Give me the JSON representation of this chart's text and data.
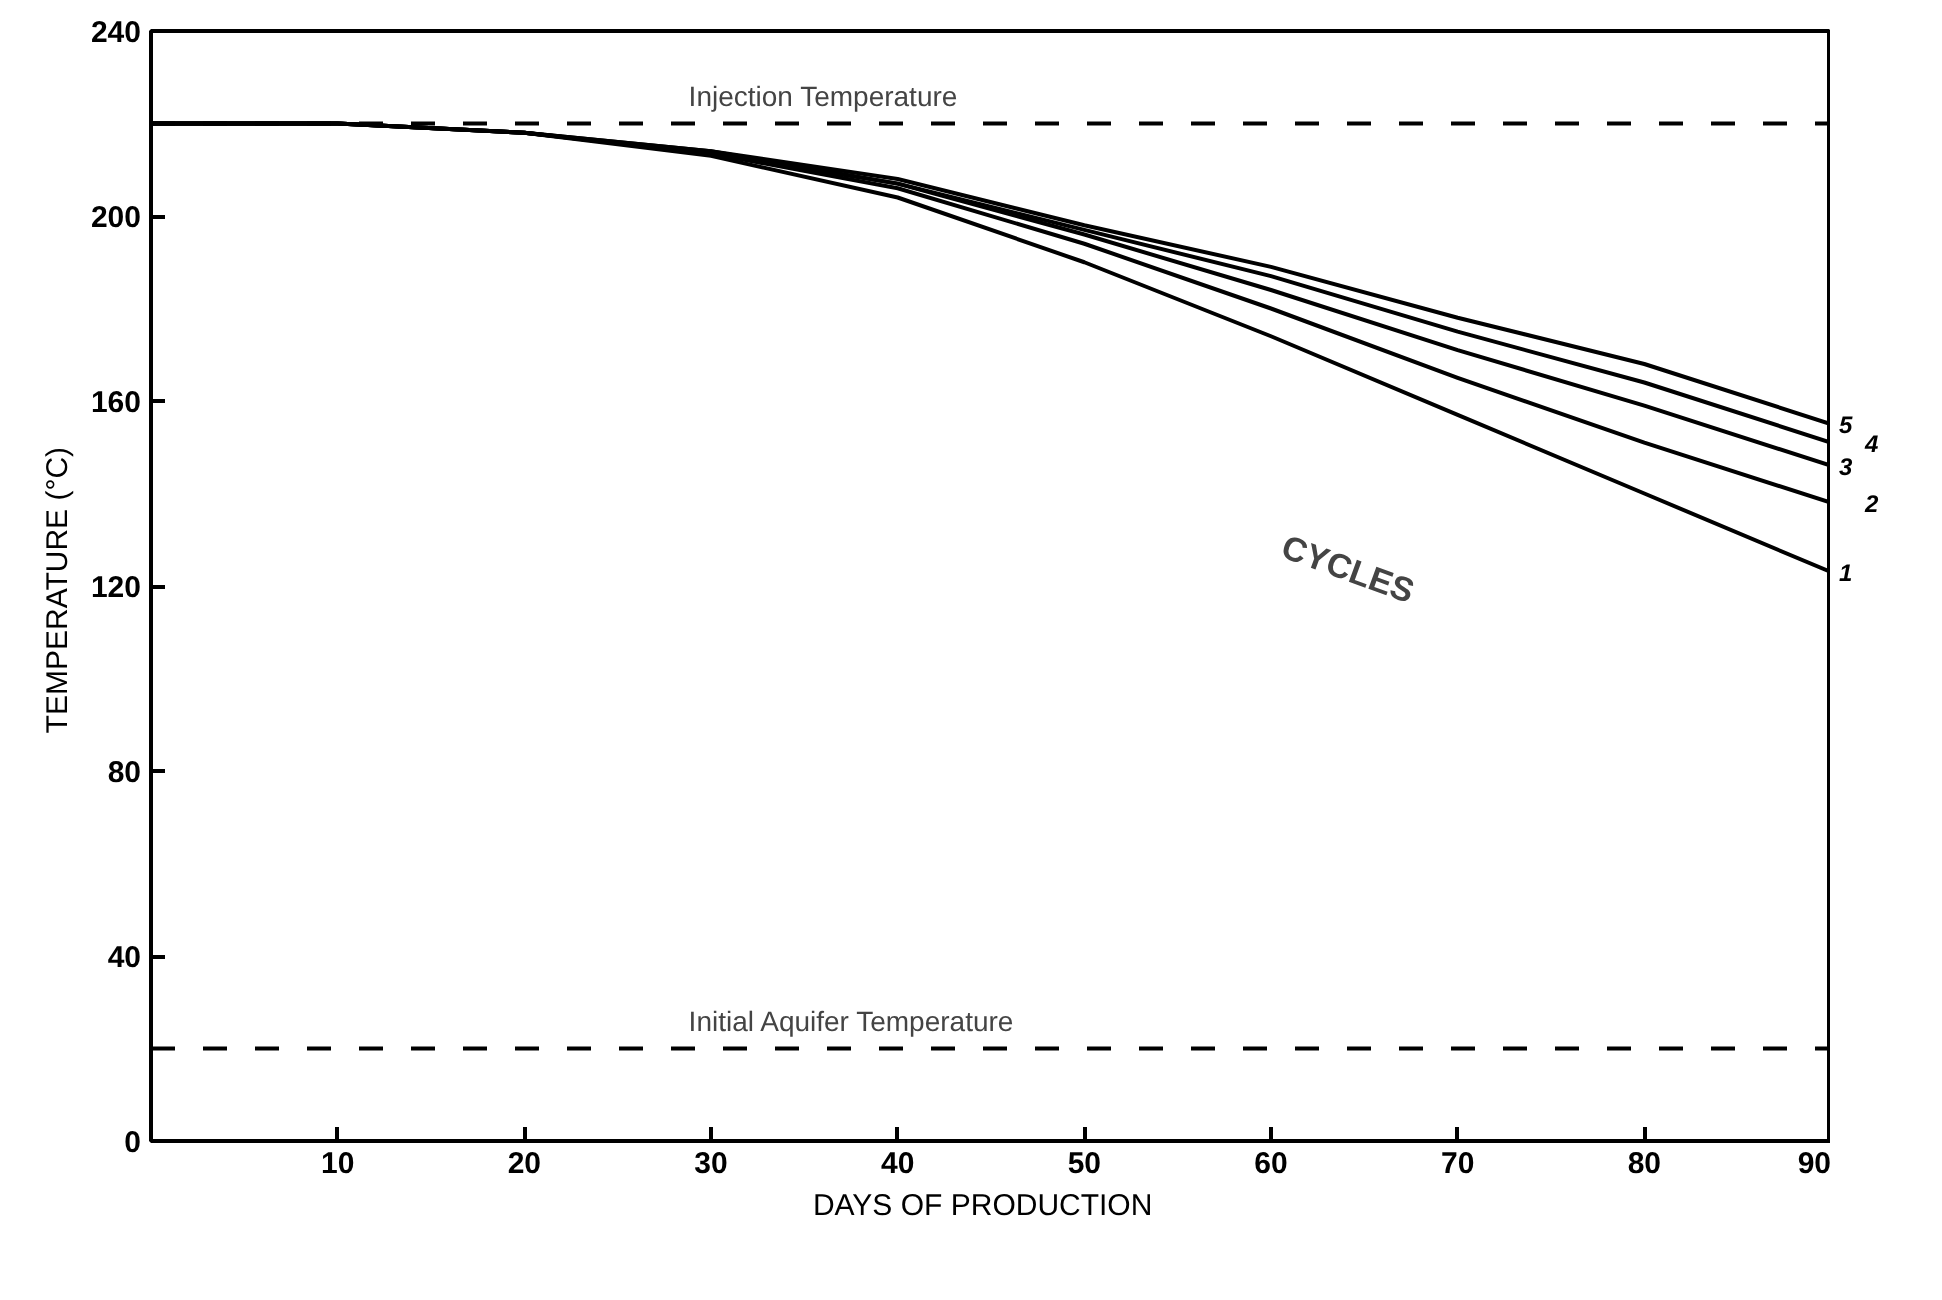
{
  "chart_data": {
    "type": "line",
    "xlabel": "DAYS  OF  PRODUCTION",
    "ylabel": "TEMPERATURE  (°C)",
    "x": [
      0,
      10,
      20,
      30,
      40,
      50,
      60,
      70,
      80,
      90
    ],
    "series": [
      {
        "name": "1",
        "color": "#000000",
        "values": [
          220,
          220,
          218,
          213,
          204,
          190,
          174,
          157,
          140,
          123
        ]
      },
      {
        "name": "2",
        "color": "#000000",
        "values": [
          220,
          220,
          218,
          213.5,
          206,
          194,
          180,
          165,
          151,
          138
        ]
      },
      {
        "name": "3",
        "color": "#000000",
        "values": [
          220,
          220,
          218,
          213.5,
          207,
          196,
          184,
          171,
          159,
          146
        ]
      },
      {
        "name": "4",
        "color": "#000000",
        "values": [
          220,
          220,
          218,
          214,
          207,
          197,
          187,
          175,
          164,
          151
        ]
      },
      {
        "name": "5",
        "color": "#000000",
        "values": [
          220,
          220,
          218,
          214,
          208,
          198,
          189,
          178,
          168,
          155
        ]
      }
    ],
    "annotations": [
      "CYCLES"
    ],
    "ref_lines": [
      {
        "axis": "y",
        "value": 220,
        "label": "Injection  Temperature",
        "color": "#000000",
        "line_style": "dashed"
      },
      {
        "axis": "y",
        "value": 20,
        "label": "Initial  Aquifer  Temperature",
        "color": "#000000",
        "line_style": "dashed"
      }
    ],
    "xlim": [
      0,
      90
    ],
    "ylim": [
      0,
      240
    ],
    "xticks": [
      10,
      20,
      30,
      40,
      50,
      60,
      70,
      80,
      90
    ],
    "yticks": [
      0,
      40,
      80,
      120,
      160,
      200,
      240
    ],
    "grid": false,
    "marker": "none",
    "line_style": "solid"
  }
}
